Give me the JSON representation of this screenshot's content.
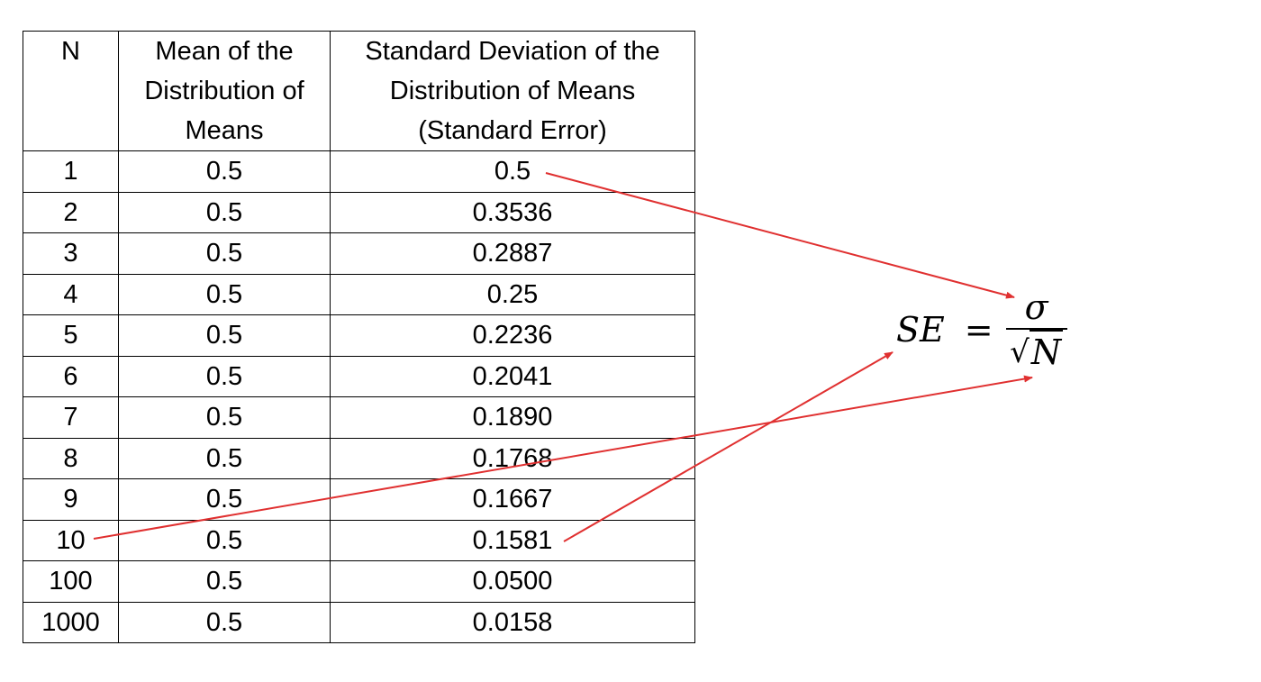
{
  "table": {
    "headers": {
      "n": "N",
      "mean": "Mean of the Distribution of Means",
      "sd": "Standard Deviation of the Distribution of Means (Standard Error)"
    },
    "rows": [
      {
        "n": "1",
        "mean": "0.5",
        "sd": "0.5"
      },
      {
        "n": "2",
        "mean": "0.5",
        "sd": "0.3536"
      },
      {
        "n": "3",
        "mean": "0.5",
        "sd": "0.2887"
      },
      {
        "n": "4",
        "mean": "0.5",
        "sd": "0.25"
      },
      {
        "n": "5",
        "mean": "0.5",
        "sd": "0.2236"
      },
      {
        "n": "6",
        "mean": "0.5",
        "sd": "0.2041"
      },
      {
        "n": "7",
        "mean": "0.5",
        "sd": "0.1890"
      },
      {
        "n": "8",
        "mean": "0.5",
        "sd": "0.1768"
      },
      {
        "n": "9",
        "mean": "0.5",
        "sd": "0.1667"
      },
      {
        "n": "10",
        "mean": "0.5",
        "sd": "0.1581"
      },
      {
        "n": "100",
        "mean": "0.5",
        "sd": "0.0500"
      },
      {
        "n": "1000",
        "mean": "0.5",
        "sd": "0.0158"
      }
    ]
  },
  "formula": {
    "lhs": "SE",
    "equals": "=",
    "numerator": "σ",
    "radical": "√",
    "radicand": "N"
  },
  "arrow_color": "#e03030"
}
